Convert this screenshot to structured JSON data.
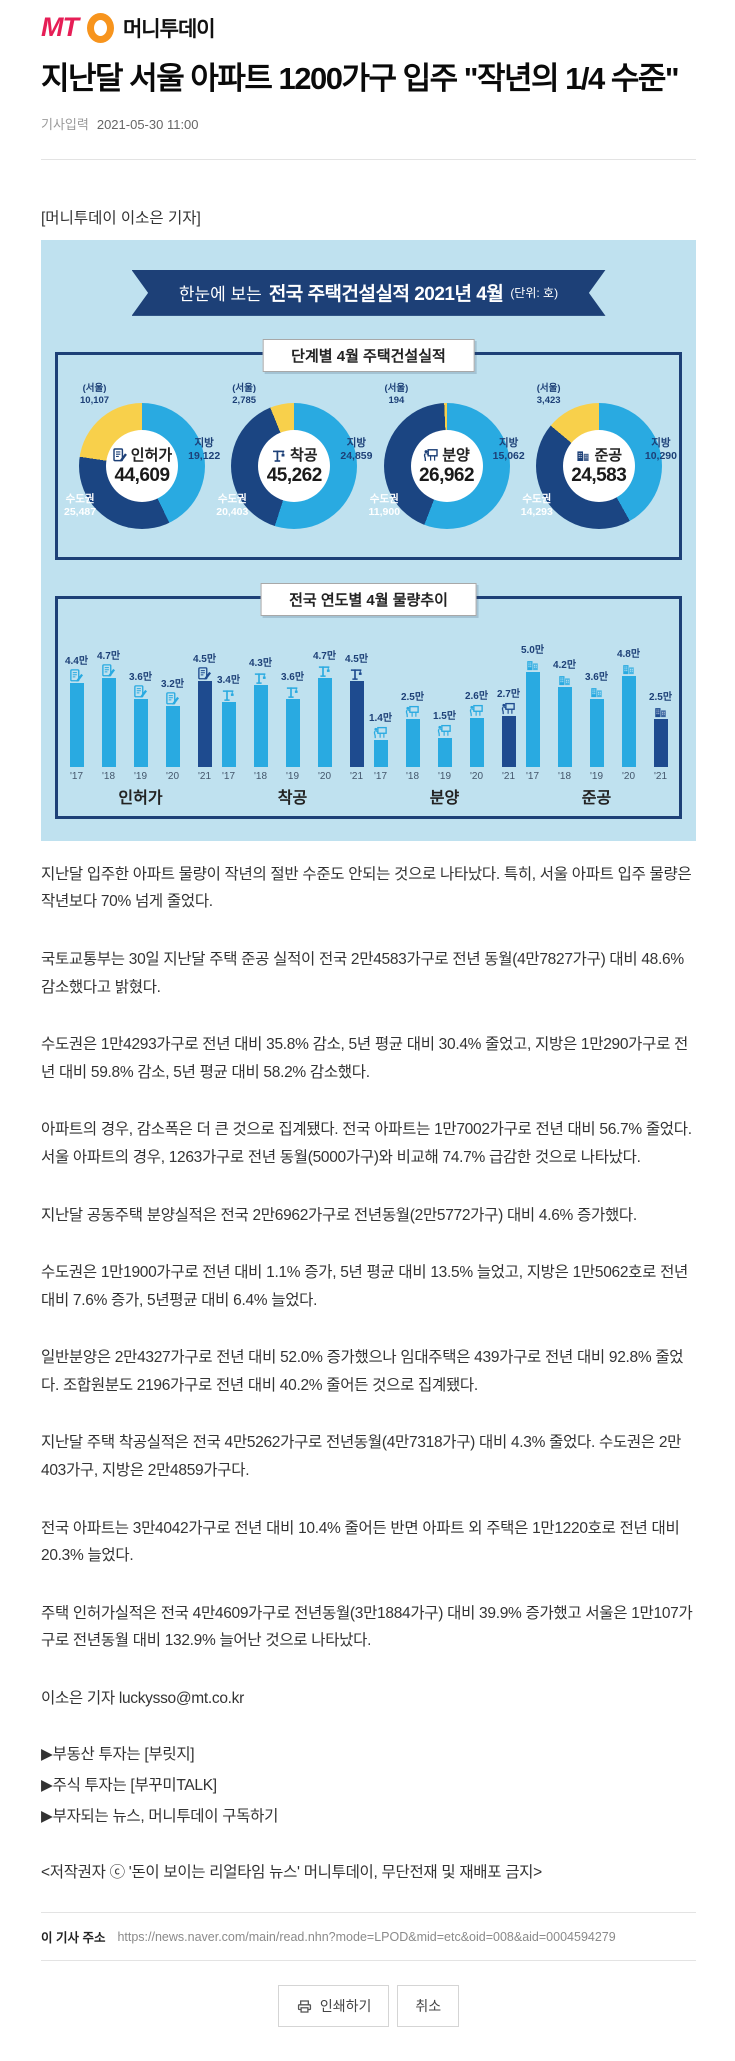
{
  "header": {
    "logo_mt": "MT",
    "logo_name": "머니투데이"
  },
  "article": {
    "title": "지난달 서울 아파트 1200가구 입주 \"작년의 1/4 수준\"",
    "meta_label": "기사입력",
    "meta_date": "2021-05-30 11:00",
    "reporter_line": "[머니투데이 이소은 기자]",
    "paragraphs": [
      "지난달 입주한 아파트 물량이 작년의 절반 수준도 안되는 것으로 나타났다. 특히, 서울 아파트 입주 물량은 작년보다 70% 넘게 줄었다.",
      "국토교통부는 30일 지난달 주택 준공 실적이 전국 2만4583가구로 전년 동월(4만7827가구) 대비 48.6% 감소했다고 밝혔다.",
      "수도권은 1만4293가구로 전년 대비 35.8% 감소, 5년 평균 대비 30.4% 줄었고, 지방은 1만290가구로 전년 대비 59.8% 감소, 5년 평균 대비 58.2% 감소했다.",
      "아파트의 경우, 감소폭은 더 큰 것으로 집계됐다. 전국 아파트는 1만7002가구로 전년 대비 56.7% 줄었다. 서울 아파트의 경우, 1263가구로 전년 동월(5000가구)와 비교해 74.7% 급감한 것으로 나타났다.",
      "지난달 공동주택 분양실적은 전국 2만6962가구로 전년동월(2만5772가구) 대비 4.6% 증가했다.",
      "수도권은 1만1900가구로 전년 대비 1.1% 증가, 5년 평균 대비 13.5% 늘었고, 지방은 1만5062호로 전년 대비 7.6% 증가, 5년평균 대비 6.4% 늘었다.",
      "일반분양은 2만4327가구로 전년 대비 52.0% 증가했으나 임대주택은 439가구로 전년 대비 92.8% 줄었다. 조합원분도 2196가구로 전년 대비 40.2% 줄어든 것으로 집계됐다.",
      "지난달 주택 착공실적은 전국 4만5262가구로 전년동월(4만7318가구) 대비 4.3% 줄었다. 수도권은 2만403가구, 지방은 2만4859가구다.",
      "전국 아파트는 3만4042가구로 전년 대비 10.4% 줄어든 반면 아파트 외 주택은 1만1220호로 전년 대비 20.3% 늘었다.",
      "주택 인허가실적은 전국 4만4609가구로 전년동월(3만1884가구) 대비 39.9% 증가했고 서울은 1만107가구로 전년동월 대비 132.9% 늘어난 것으로 나타났다."
    ],
    "byline": "이소은 기자 luckysso@mt.co.kr",
    "links": [
      "▶부동산 투자는 [부릿지]",
      "▶주식 투자는 [부꾸미TALK]",
      "▶부자되는 뉴스, 머니투데이 구독하기"
    ],
    "copyright": "<저작권자 ⓒ '돈이 보이는 리얼타임 뉴스' 머니투데이, 무단전재 및 재배포 금지>",
    "url_label": "이 기사 주소",
    "url": "https://news.naver.com/main/read.nhn?mode=LPOD&mid=etc&oid=008&aid=0004594279",
    "print_button": "인쇄하기",
    "cancel_button": "취소"
  },
  "infographic": {
    "banner": {
      "prefix": "한눈에 보는",
      "title": "전국 주택건설실적 2021년 4월",
      "unit": "(단위: 호)"
    },
    "colors": {
      "background": "#bfe1ef",
      "navy": "#1d4077",
      "donut_navy": "#1b4582",
      "sky": "#29aae1",
      "yellow": "#f8d04b",
      "bar_dark": "#1e4b8f"
    }
  },
  "chart_data": [
    {
      "type": "pie",
      "title": "단계별 4월 주택건설실적",
      "unit": "호",
      "segment_labels": {
        "seoul": "(서울)",
        "sudogwon": "수도권",
        "jibang": "지방"
      },
      "donuts": [
        {
          "key": "inhuga",
          "name": "인허가",
          "icon": "document-icon",
          "icon_key": "permit",
          "total": 44609,
          "total_display": "44,609",
          "jibang": 19122,
          "jibang_display": "19,122",
          "sudogwon": 25487,
          "sudogwon_display": "25,487",
          "seoul": 10107,
          "seoul_display": "10,107"
        },
        {
          "key": "chakgong",
          "name": "착공",
          "icon": "crane-icon",
          "icon_key": "crane",
          "total": 45262,
          "total_display": "45,262",
          "jibang": 24859,
          "jibang_display": "24,859",
          "sudogwon": 20403,
          "sudogwon_display": "20,403",
          "seoul": 2785,
          "seoul_display": "2,785"
        },
        {
          "key": "bunyang",
          "name": "분양",
          "icon": "sale-board-icon",
          "icon_key": "sale",
          "total": 26962,
          "total_display": "26,962",
          "jibang": 15062,
          "jibang_display": "15,062",
          "sudogwon": 11900,
          "sudogwon_display": "11,900",
          "seoul": 194,
          "seoul_display": "194"
        },
        {
          "key": "jungong",
          "name": "준공",
          "icon": "building-icon",
          "icon_key": "building",
          "total": 24583,
          "total_display": "24,583",
          "jibang": 10290,
          "jibang_display": "10,290",
          "sudogwon": 14293,
          "sudogwon_display": "14,293",
          "seoul": 3423,
          "seoul_display": "3,423"
        }
      ]
    },
    {
      "type": "bar",
      "title": "전국 연도별 4월 물량추이",
      "unit": "만",
      "categories": [
        "'17",
        "'18",
        "'19",
        "'20",
        "'21"
      ],
      "highlight_last_bar": true,
      "series": [
        {
          "name": "인허가",
          "icon": "document-icon",
          "icon_key": "permit",
          "values": [
            4.4,
            4.7,
            3.6,
            3.2,
            4.5
          ]
        },
        {
          "name": "착공",
          "icon": "crane-icon",
          "icon_key": "crane",
          "values": [
            3.4,
            4.3,
            3.6,
            4.7,
            4.5
          ]
        },
        {
          "name": "분양",
          "icon": "sale-board-icon",
          "icon_key": "sale",
          "values": [
            1.4,
            2.5,
            1.5,
            2.6,
            2.7
          ]
        },
        {
          "name": "준공",
          "icon": "building-icon",
          "icon_key": "building",
          "values": [
            5.0,
            4.2,
            3.6,
            4.8,
            2.5
          ]
        }
      ]
    }
  ]
}
